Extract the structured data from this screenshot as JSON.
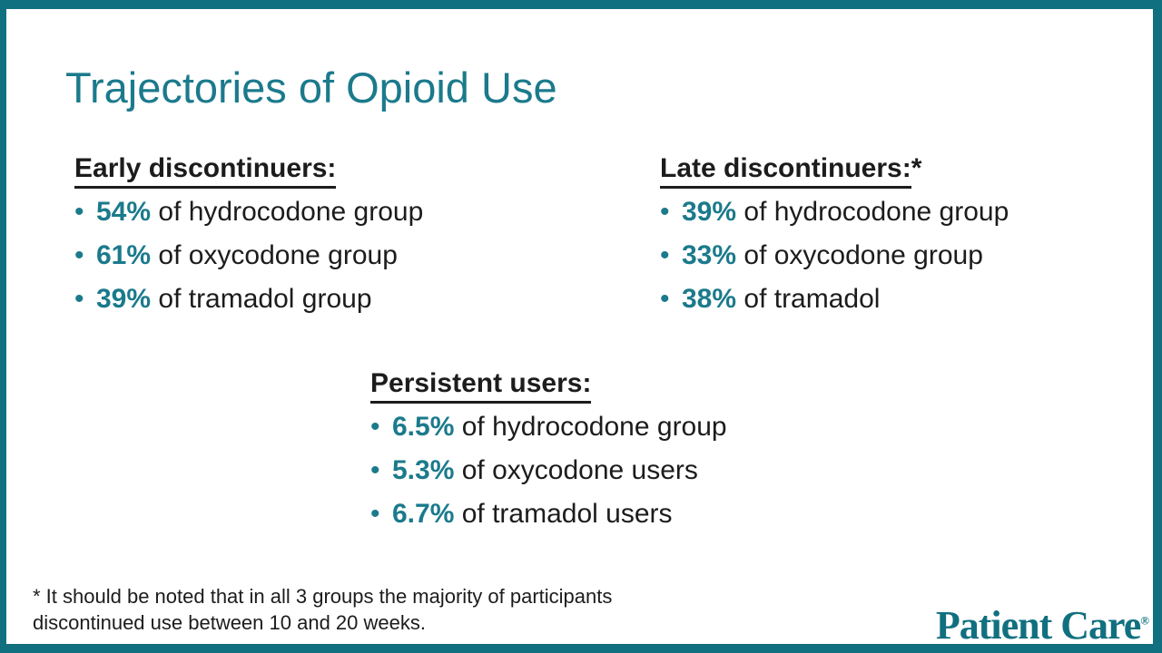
{
  "title": "Trajectories of Opioid Use",
  "sections": [
    {
      "heading": "Early discontinuers:",
      "heading_suffix": "",
      "bullets": [
        {
          "value": "54%",
          "rest": " of hydrocodone group"
        },
        {
          "value": "61%",
          "rest": " of oxycodone group"
        },
        {
          "value": "39%",
          "rest": " of tramadol group"
        }
      ]
    },
    {
      "heading": "Late discontinuers:",
      "heading_suffix": "*",
      "bullets": [
        {
          "value": "39%",
          "rest": " of hydrocodone group"
        },
        {
          "value": "33%",
          "rest": " of oxycodone group"
        },
        {
          "value": "38%",
          "rest": " of tramadol"
        }
      ]
    },
    {
      "heading": "Persistent users:",
      "heading_suffix": "",
      "bullets": [
        {
          "value": "6.5%",
          "rest": " of hydrocodone group"
        },
        {
          "value": "5.3%",
          "rest": " of oxycodone users"
        },
        {
          "value": "6.7%",
          "rest": " of tramadol users"
        }
      ]
    }
  ],
  "footnote": {
    "line1": "* It should be noted that in all 3 groups the majority of participants",
    "line2": "discontinued use between 10 and 20 weeks."
  },
  "logo": {
    "text": "Patient Care",
    "registered": "®"
  },
  "colors": {
    "accent": "#1b7a8c",
    "border": "#117080",
    "text": "#1c1c1c"
  }
}
